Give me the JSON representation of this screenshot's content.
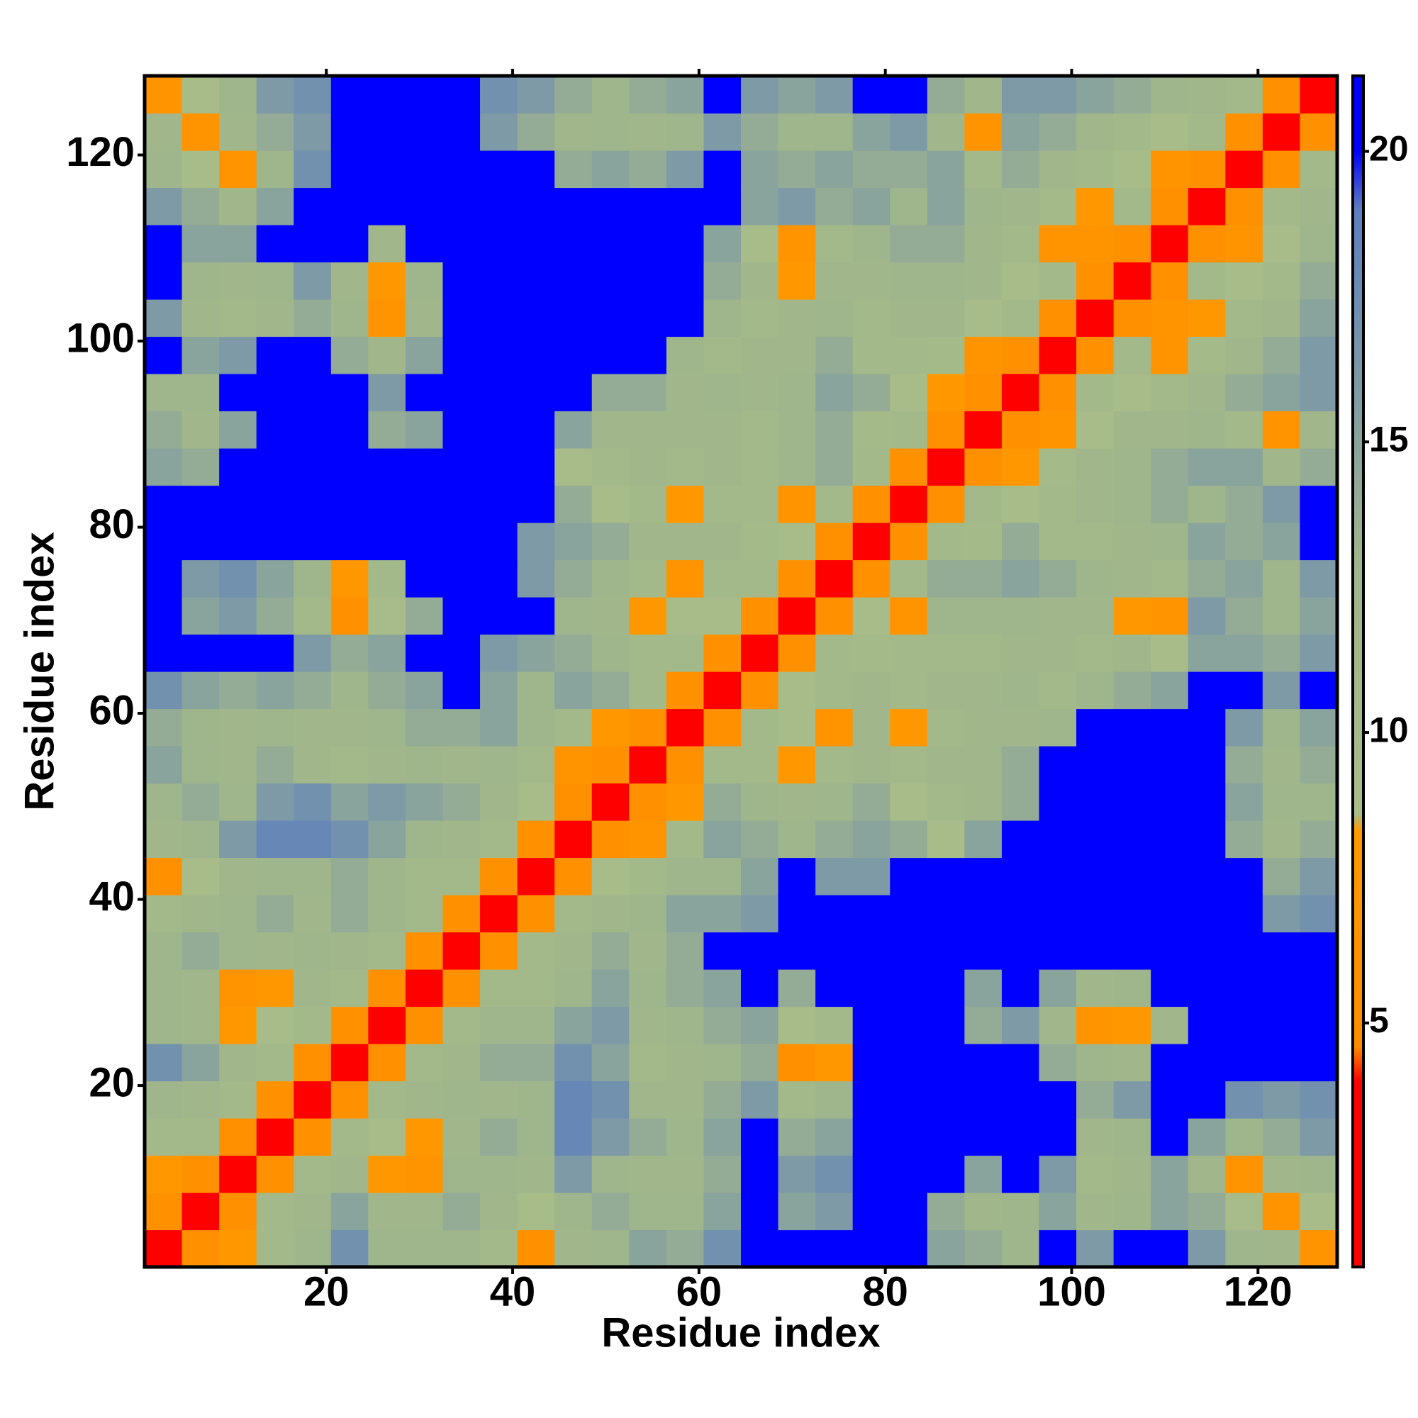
{
  "chart_data": {
    "type": "heatmap",
    "x_label": "Residue index",
    "y_label": "Residue index",
    "x": [
      2.5,
      6.5,
      10.5,
      14.5,
      18.5,
      22.5,
      26.5,
      30.5,
      34.5,
      38.5,
      42.5,
      46.5,
      50.5,
      54.5,
      58.5,
      62.5,
      66.5,
      70.5,
      74.5,
      78.5,
      82.5,
      86.5,
      90.5,
      94.5,
      98.5,
      102.5,
      106.5,
      110.5,
      114.5,
      118.5,
      122.5,
      126.5
    ],
    "y": [
      2.5,
      6.5,
      10.5,
      14.5,
      18.5,
      22.5,
      26.5,
      30.5,
      34.5,
      38.5,
      42.5,
      46.5,
      50.5,
      54.5,
      58.5,
      62.5,
      66.5,
      70.5,
      74.5,
      78.5,
      82.5,
      86.5,
      90.5,
      94.5,
      98.5,
      102.5,
      106.5,
      110.5,
      114.5,
      118.5,
      122.5,
      126.5
    ],
    "symmetric": true,
    "z": [
      [
        3
      ],
      [
        6,
        3
      ],
      [
        8,
        6,
        3
      ],
      [
        11,
        11,
        6,
        3
      ],
      [
        13,
        12,
        11,
        6,
        3
      ],
      [
        17,
        15,
        12,
        11,
        6,
        3
      ],
      [
        13,
        12,
        8,
        9,
        11,
        6,
        3
      ],
      [
        13,
        12,
        7,
        8,
        12,
        11,
        6,
        3
      ],
      [
        13,
        14,
        13,
        12,
        13,
        12,
        11,
        6,
        3
      ],
      [
        11,
        12,
        13,
        14,
        12,
        14,
        13,
        11,
        6,
        3
      ],
      [
        6,
        9,
        12,
        13,
        13,
        14,
        13,
        11,
        11,
        6,
        3
      ],
      [
        12,
        13,
        16,
        18,
        18,
        17,
        15,
        13,
        12,
        11,
        6,
        3
      ],
      [
        13,
        14,
        13,
        16,
        17,
        15,
        16,
        15,
        14,
        12,
        9,
        6,
        3
      ],
      [
        15,
        13,
        12,
        14,
        12,
        11,
        12,
        13,
        12,
        13,
        11,
        7,
        6,
        3
      ],
      [
        14,
        13,
        12,
        13,
        12,
        12,
        13,
        14,
        14,
        15,
        13,
        11,
        8,
        6,
        3
      ],
      [
        17,
        15,
        14,
        15,
        14,
        13,
        14,
        15,
        21,
        15,
        13,
        15,
        14,
        11,
        6,
        3
      ],
      [
        21,
        21,
        21,
        21,
        16,
        14,
        15,
        21,
        21,
        16,
        15,
        14,
        13,
        11,
        11,
        6,
        3
      ],
      [
        21,
        15,
        16,
        14,
        11,
        6,
        9,
        14,
        21,
        21,
        21,
        13,
        12,
        8,
        9,
        9,
        6,
        3
      ],
      [
        21,
        16,
        17,
        15,
        13,
        8,
        11,
        21,
        21,
        21,
        16,
        14,
        13,
        11,
        7,
        11,
        11,
        6,
        3
      ],
      [
        21,
        21,
        21,
        21,
        21,
        21,
        21,
        21,
        21,
        21,
        16,
        15,
        14,
        12,
        12,
        12,
        10,
        9,
        6,
        3
      ],
      [
        21,
        21,
        21,
        21,
        21,
        21,
        21,
        21,
        21,
        21,
        21,
        14,
        9,
        11,
        8,
        11,
        11,
        7,
        11,
        6,
        3
      ],
      [
        15,
        14,
        21,
        21,
        21,
        21,
        21,
        21,
        21,
        21,
        21,
        9,
        11,
        12,
        11,
        12,
        11,
        13,
        14,
        11,
        6,
        3
      ],
      [
        14,
        12,
        15,
        21,
        21,
        21,
        14,
        15,
        21,
        21,
        21,
        15,
        12,
        12,
        12,
        12,
        11,
        13,
        14,
        10,
        11,
        6,
        3
      ],
      [
        13,
        13,
        21,
        21,
        21,
        21,
        16,
        21,
        21,
        21,
        21,
        21,
        14,
        14,
        12,
        13,
        12,
        13,
        15,
        14,
        9,
        8,
        6,
        3
      ],
      [
        21,
        15,
        16,
        21,
        21,
        14,
        12,
        15,
        21,
        21,
        21,
        21,
        21,
        21,
        13,
        11,
        12,
        12,
        14,
        11,
        11,
        10,
        7,
        6,
        3
      ],
      [
        16,
        12,
        11,
        12,
        14,
        13,
        7,
        12,
        21,
        21,
        21,
        21,
        21,
        21,
        21,
        13,
        11,
        12,
        13,
        11,
        12,
        12,
        9,
        11,
        6,
        3
      ],
      [
        21,
        13,
        12,
        13,
        16,
        12,
        8,
        13,
        21,
        21,
        21,
        21,
        21,
        21,
        21,
        14,
        12,
        8,
        12,
        12,
        13,
        13,
        12,
        9,
        11,
        6,
        3
      ],
      [
        21,
        15,
        15,
        21,
        21,
        21,
        12,
        21,
        21,
        21,
        21,
        21,
        21,
        21,
        21,
        15,
        9,
        7,
        11,
        13,
        14,
        14,
        12,
        11,
        7,
        7,
        6,
        3
      ],
      [
        16,
        14,
        12,
        15,
        21,
        21,
        21,
        21,
        21,
        21,
        21,
        21,
        21,
        21,
        21,
        21,
        15,
        16,
        14,
        15,
        13,
        15,
        13,
        12,
        10,
        8,
        11,
        6,
        3
      ],
      [
        13,
        9,
        7,
        13,
        17,
        21,
        21,
        21,
        21,
        21,
        21,
        14,
        15,
        14,
        16,
        21,
        15,
        14,
        15,
        14,
        14,
        15,
        11,
        14,
        12,
        11,
        9,
        7,
        6,
        3
      ],
      [
        12,
        7,
        12,
        14,
        16,
        21,
        21,
        21,
        21,
        16,
        14,
        12,
        13,
        12,
        13,
        16,
        14,
        13,
        13,
        15,
        16,
        12,
        7,
        15,
        14,
        12,
        11,
        9,
        11,
        6,
        3
      ],
      [
        7,
        9,
        13,
        16,
        17,
        21,
        21,
        21,
        21,
        17,
        16,
        14,
        13,
        14,
        15,
        21,
        16,
        15,
        16,
        21,
        21,
        14,
        12,
        16,
        16,
        15,
        14,
        13,
        12,
        11,
        6,
        3
      ]
    ],
    "xlim": [
      0.5,
      128.5
    ],
    "ylim": [
      0.5,
      128.5
    ],
    "xticks": [
      20,
      40,
      60,
      80,
      100,
      120
    ],
    "yticks": [
      20,
      40,
      60,
      80,
      100,
      120
    ],
    "zlim": [
      0.8,
      21.3
    ],
    "zticks": [
      5,
      10,
      15,
      20
    ],
    "colorscale": [
      [
        0.8,
        "#ff0000"
      ],
      [
        4,
        "#ff0000"
      ],
      [
        4.6,
        "#ff8c00"
      ],
      [
        8.3,
        "#ff9900"
      ],
      [
        8.6,
        "#a8bd88"
      ],
      [
        13,
        "#9fb58c"
      ],
      [
        19,
        "#5c7fbf"
      ],
      [
        20,
        "#0000ff"
      ],
      [
        21.3,
        "#0000ff"
      ]
    ]
  }
}
